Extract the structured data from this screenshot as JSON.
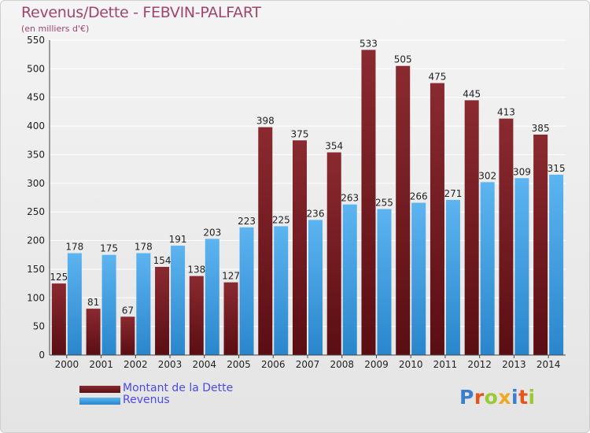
{
  "title": "Revenus/Dette - FEBVIN-PALFART",
  "subtitle": "(en milliers d'€)",
  "logo_text": "Proxiti",
  "colors": {
    "dette": "#7a1c22",
    "revenus": "#3d9fe6",
    "title": "#a0466c",
    "legend_text": "#4a4aee"
  },
  "chart_data": {
    "type": "bar",
    "title": "Revenus/Dette - FEBVIN-PALFART",
    "subtitle": "(en milliers d'€)",
    "categories": [
      "2000",
      "2001",
      "2002",
      "2003",
      "2004",
      "2005",
      "2006",
      "2007",
      "2008",
      "2009",
      "2010",
      "2011",
      "2012",
      "2013",
      "2014"
    ],
    "series": [
      {
        "name": "Montant de la Dette",
        "values": [
          125,
          81,
          67,
          154,
          138,
          127,
          398,
          375,
          354,
          533,
          505,
          475,
          445,
          413,
          385
        ]
      },
      {
        "name": "Revenus",
        "values": [
          178,
          175,
          178,
          191,
          203,
          223,
          225,
          236,
          263,
          255,
          266,
          271,
          302,
          309,
          315
        ]
      }
    ],
    "yticks": [
      0,
      50,
      100,
      150,
      200,
      250,
      300,
      350,
      400,
      450,
      500,
      550
    ],
    "ylim": [
      0,
      550
    ],
    "grid": true,
    "legend_position": "bottom-left"
  }
}
